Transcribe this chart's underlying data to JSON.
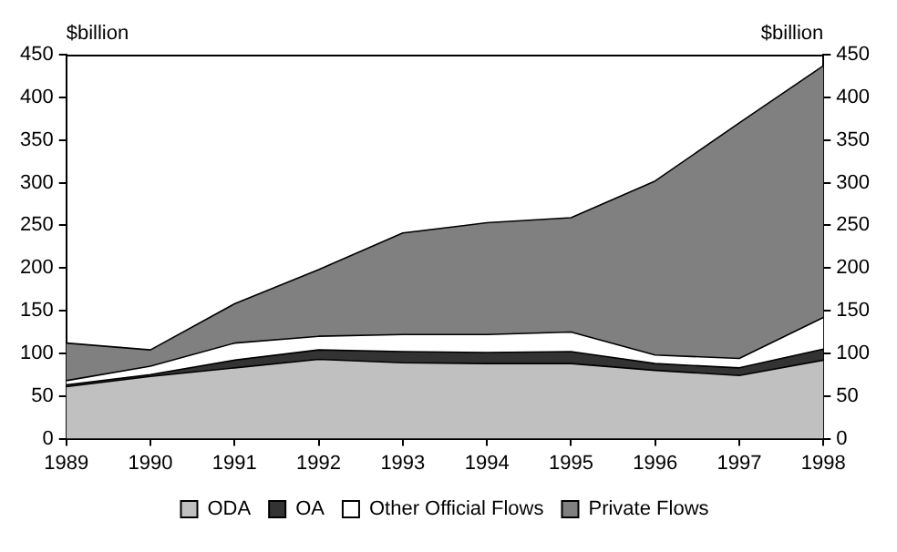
{
  "chart_data": {
    "type": "area",
    "stacked": true,
    "categories": [
      "1989",
      "1990",
      "1991",
      "1992",
      "1993",
      "1994",
      "1995",
      "1996",
      "1997",
      "1998"
    ],
    "series": [
      {
        "name": "ODA",
        "color": "#c0c0c0",
        "values": [
          61,
          73,
          83,
          93,
          89,
          88,
          88,
          80,
          74,
          92
        ]
      },
      {
        "name": "OA",
        "color": "#333333",
        "values": [
          2,
          2,
          9,
          11,
          13,
          13,
          14,
          8,
          9,
          13
        ]
      },
      {
        "name": "Other Official Flows",
        "color": "#ffffff",
        "values": [
          5,
          10,
          20,
          16,
          20,
          21,
          23,
          10,
          11,
          37
        ]
      },
      {
        "name": "Private Flows",
        "color": "#808080",
        "values": [
          44,
          19,
          46,
          78,
          119,
          131,
          134,
          204,
          276,
          295
        ]
      }
    ],
    "ylabel": "$billion",
    "y2label": "$billion",
    "ylim": [
      0,
      450
    ],
    "yticks": [
      0,
      50,
      100,
      150,
      200,
      250,
      300,
      350,
      400,
      450
    ],
    "y2lim": [
      0,
      450
    ],
    "y2ticks": [
      0,
      50,
      100,
      150,
      200,
      250,
      300,
      350,
      400,
      450
    ],
    "grid": false,
    "legend": "bottom"
  }
}
